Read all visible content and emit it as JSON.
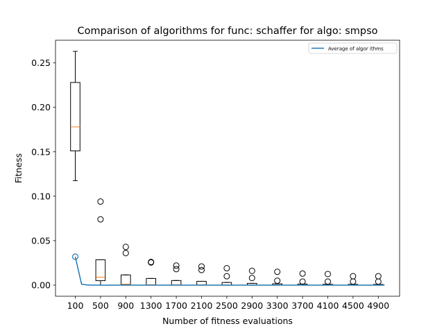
{
  "chart_data": {
    "type": "box",
    "title": "Comparison of algorithms for func: schaffer for algo: smpso",
    "xlabel": "Number of fitness evaluations",
    "ylabel": "Fitness",
    "ylim": [
      -0.0125,
      0.2755
    ],
    "yticks": [
      0.0,
      0.05,
      0.1,
      0.15,
      0.2,
      0.25
    ],
    "ytick_labels": [
      "0.00",
      "0.05",
      "0.10",
      "0.15",
      "0.20",
      "0.25"
    ],
    "categories": [
      "100",
      "500",
      "900",
      "1300",
      "1700",
      "2100",
      "2500",
      "2900",
      "3300",
      "3700",
      "4100",
      "4500",
      "4900"
    ],
    "legend": {
      "position": "top-right",
      "entries": [
        {
          "label": "Average of algor ithms",
          "color": "#1f77b4"
        }
      ]
    },
    "boxes": [
      {
        "category": "100",
        "whislo": 0.1175,
        "q1": 0.151,
        "median": 0.178,
        "q3": 0.228,
        "whishi": 0.263,
        "fliers": []
      },
      {
        "category": "500",
        "whislo": 0.0,
        "q1": 0.005,
        "median": 0.009,
        "q3": 0.0285,
        "whishi": 0.0285,
        "fliers": [
          0.074,
          0.094
        ]
      },
      {
        "category": "900",
        "whislo": 0.0,
        "q1": 0.0005,
        "median": 0.001,
        "q3": 0.0115,
        "whishi": 0.0115,
        "fliers": [
          0.036,
          0.043
        ]
      },
      {
        "category": "1300",
        "whislo": 0.0,
        "q1": 0.0003,
        "median": 0.0005,
        "q3": 0.0075,
        "whishi": 0.0075,
        "fliers": [
          0.0255,
          0.026
        ]
      },
      {
        "category": "1700",
        "whislo": 0.0,
        "q1": 0.0002,
        "median": 0.0004,
        "q3": 0.0052,
        "whishi": 0.0052,
        "fliers": [
          0.018,
          0.022
        ]
      },
      {
        "category": "2100",
        "whislo": 0.0,
        "q1": 0.0002,
        "median": 0.0003,
        "q3": 0.0043,
        "whishi": 0.0043,
        "fliers": [
          0.017,
          0.021
        ]
      },
      {
        "category": "2500",
        "whislo": 0.0,
        "q1": 0.0001,
        "median": 0.0002,
        "q3": 0.003,
        "whishi": 0.003,
        "fliers": [
          0.01,
          0.019
        ]
      },
      {
        "category": "2900",
        "whislo": 0.0,
        "q1": 0.0001,
        "median": 0.0002,
        "q3": 0.002,
        "whishi": 0.002,
        "fliers": [
          0.008,
          0.016
        ]
      },
      {
        "category": "3300",
        "whislo": 0.0,
        "q1": 0.0001,
        "median": 0.0001,
        "q3": 0.0015,
        "whishi": 0.0015,
        "fliers": [
          0.005,
          0.015
        ]
      },
      {
        "category": "3700",
        "whislo": 0.0,
        "q1": 0.0,
        "median": 0.0001,
        "q3": 0.0012,
        "whishi": 0.0012,
        "fliers": [
          0.004,
          0.013
        ]
      },
      {
        "category": "4100",
        "whislo": 0.0,
        "q1": 0.0,
        "median": 0.0001,
        "q3": 0.001,
        "whishi": 0.001,
        "fliers": [
          0.004,
          0.0125
        ]
      },
      {
        "category": "4500",
        "whislo": 0.0,
        "q1": 0.0,
        "median": 0.0001,
        "q3": 0.0009,
        "whishi": 0.0009,
        "fliers": [
          0.004,
          0.01
        ]
      },
      {
        "category": "4900",
        "whislo": 0.0,
        "q1": 0.0,
        "median": 0.0001,
        "q3": 0.0008,
        "whishi": 0.0008,
        "fliers": [
          0.004,
          0.01
        ]
      }
    ],
    "series": [
      {
        "name": "Average of algor ithms",
        "color": "#1f77b4",
        "x": [
          100,
          200,
          300,
          400,
          500,
          900,
          1300,
          1700,
          2100,
          2500,
          2900,
          3300,
          3700,
          4100,
          4500,
          4900,
          5000
        ],
        "y": [
          0.032,
          0.001,
          0.0001,
          0.0,
          0.0,
          0.0,
          0.0,
          0.0,
          0.0,
          0.0,
          0.0,
          0.0,
          0.0,
          0.0,
          0.0,
          0.0,
          0.0
        ]
      }
    ],
    "series_marker": {
      "x": 100,
      "y": 0.032
    }
  }
}
